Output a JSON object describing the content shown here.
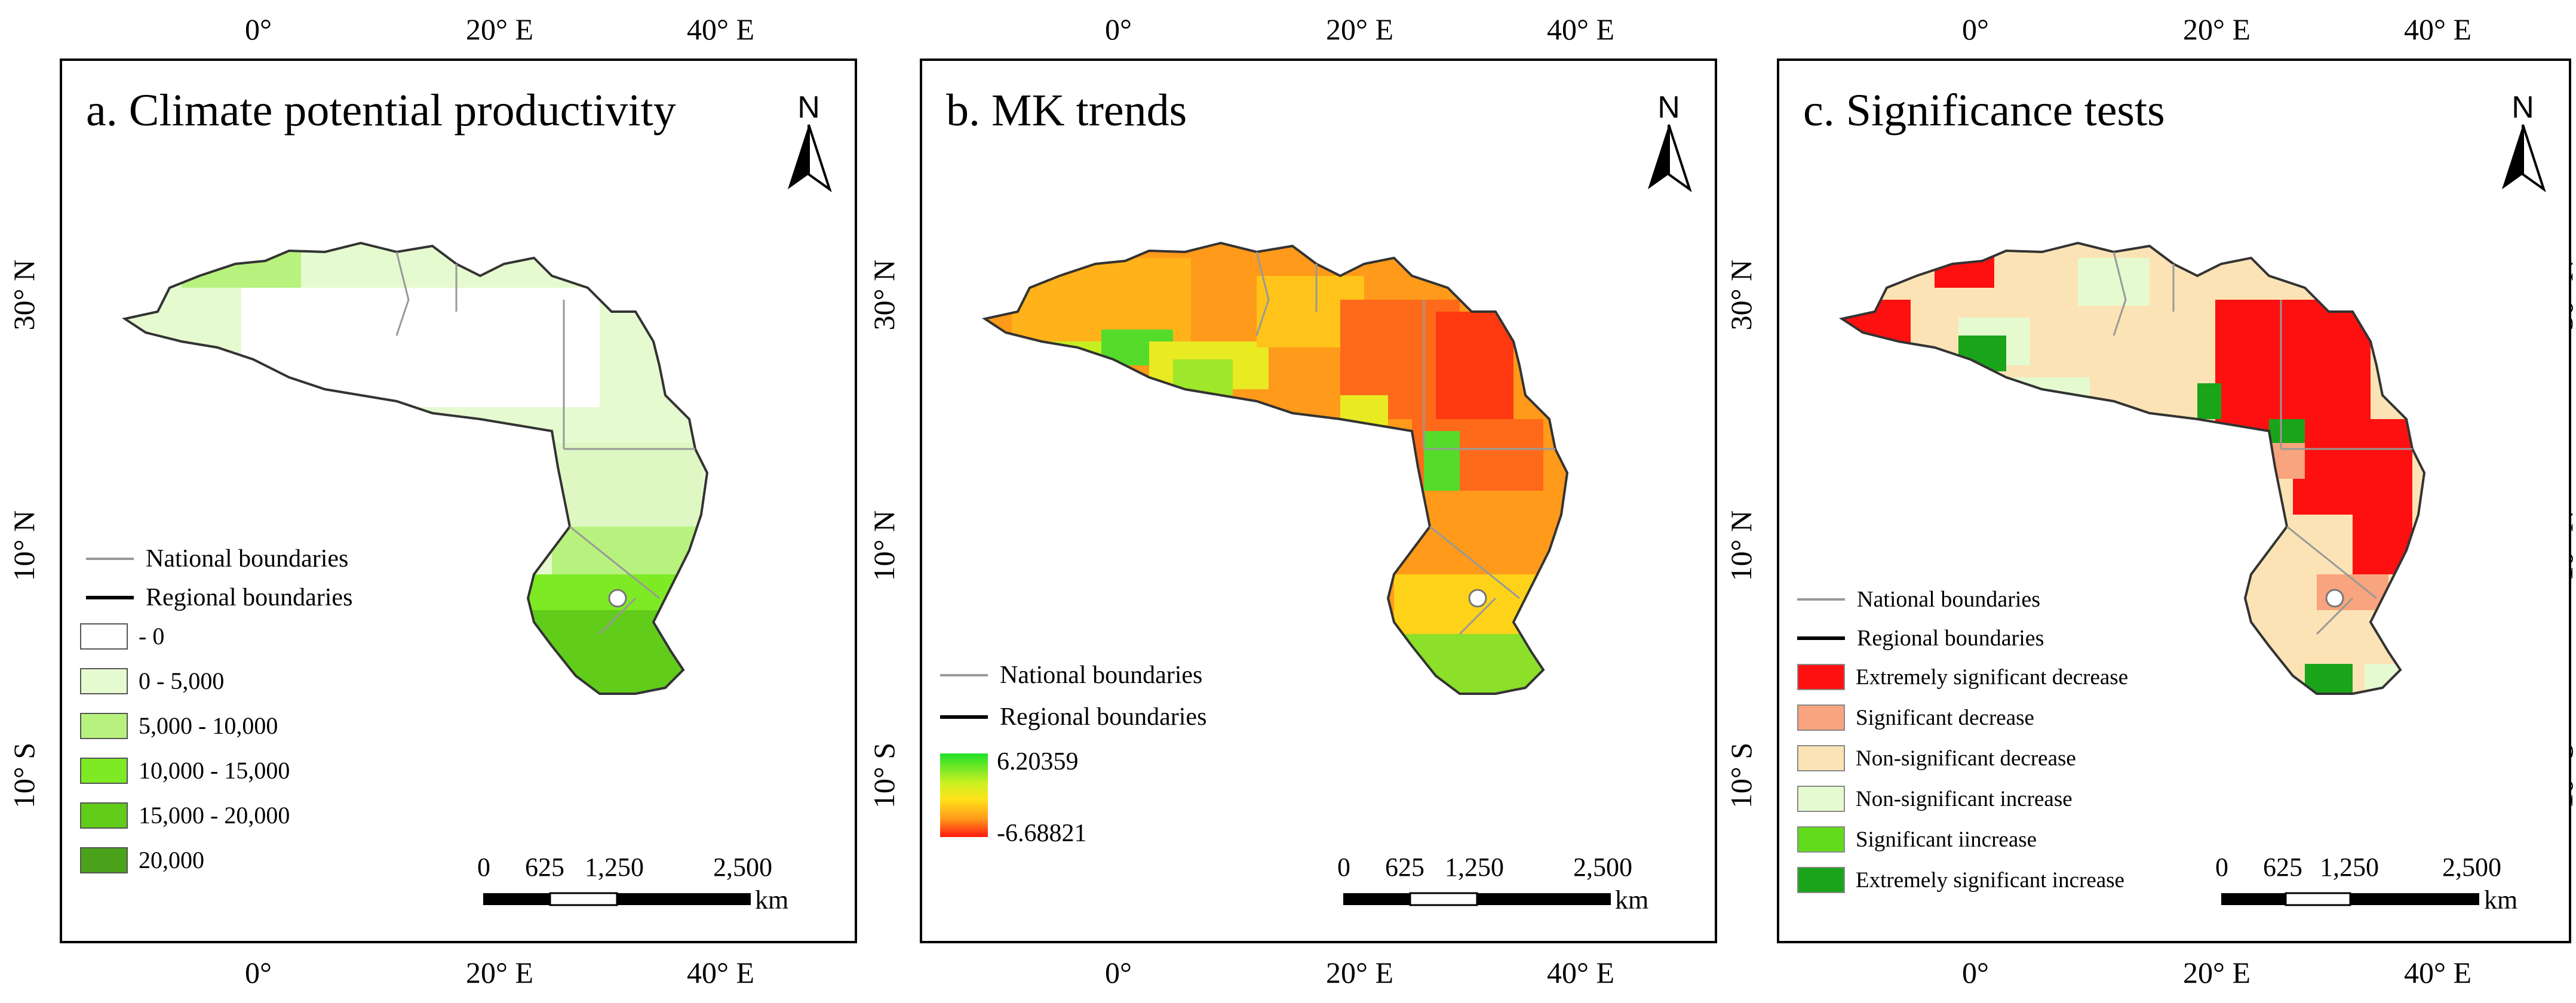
{
  "axes": {
    "top_ticks": [
      "0°",
      "20° E",
      "40° E"
    ],
    "bottom_ticks": [
      "0°",
      "20° E",
      "40° E"
    ],
    "side_ticks": [
      "30° N",
      "10° N",
      "10° S"
    ]
  },
  "panels": [
    {
      "id": "a",
      "title": "a. Climate potential  productivity",
      "north_label": "N",
      "legend": {
        "national_boundaries": "National boundaries",
        "regional_boundaries": "Regional boundaries",
        "classes": [
          {
            "label": "- 0",
            "color": "#ffffff"
          },
          {
            "label": "0 - 5,000",
            "color": "#e6fad0"
          },
          {
            "label": "5,000 - 10,000",
            "color": "#b8f27e"
          },
          {
            "label": "10,000 - 15,000",
            "color": "#7eea24"
          },
          {
            "label": "15,000 - 20,000",
            "color": "#62cc1a"
          },
          {
            "label": "20,000",
            "color": "#4aa21a"
          }
        ]
      },
      "scale": {
        "labels": [
          "0",
          "625",
          "1,250",
          "2,500"
        ],
        "unit": "km"
      }
    },
    {
      "id": "b",
      "title": "b. MK trends",
      "north_label": "N",
      "legend": {
        "national_boundaries": "National boundaries",
        "regional_boundaries": "Regional boundaries",
        "gradient_max": "6.20359",
        "gradient_min": "-6.68821",
        "gradient_colors": [
          "#1fe02a",
          "#ffe21a",
          "#ff1a10"
        ]
      },
      "scale": {
        "labels": [
          "0",
          "625",
          "1,250",
          "2,500"
        ],
        "unit": "km"
      }
    },
    {
      "id": "c",
      "title": "c. Significance tests",
      "north_label": "N",
      "legend": {
        "national_boundaries": "National boundaries",
        "regional_boundaries": "Regional boundaries",
        "classes": [
          {
            "label": "Extremely significant decrease",
            "color": "#ff1010"
          },
          {
            "label": "Significant decrease",
            "color": "#f8a47e"
          },
          {
            "label": "Non-significant decrease",
            "color": "#fbe3b5"
          },
          {
            "label": "Non-significant increase",
            "color": "#e6fad0"
          },
          {
            "label": "Significant iincrease",
            "color": "#62dc1a"
          },
          {
            "label": "Extremely significant increase",
            "color": "#1aa41a"
          }
        ]
      },
      "scale": {
        "labels": [
          "0",
          "625",
          "1,250",
          "2,500"
        ],
        "unit": "km"
      }
    }
  ]
}
